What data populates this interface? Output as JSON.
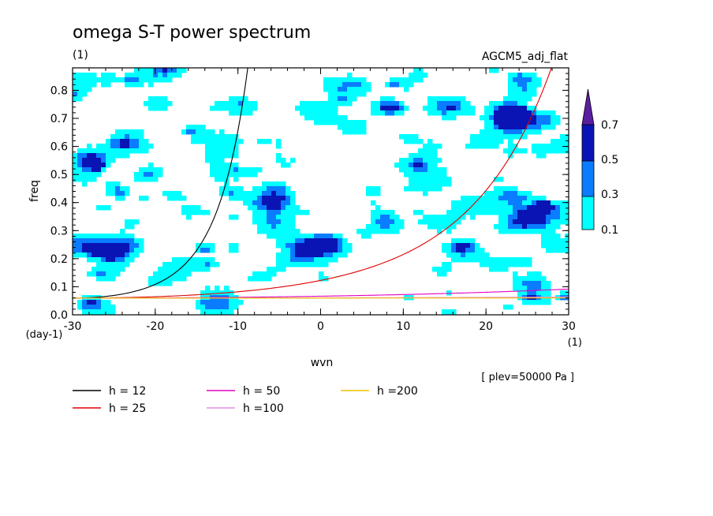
{
  "chart_data": {
    "type": "heatmap",
    "title": "omega S-T power spectrum",
    "title_units": "(1)",
    "experiment": "AGCM5_adj_flat",
    "xlabel": "wvn",
    "x_units": "(1)",
    "ylabel": "freq",
    "y_units": "(day-1)",
    "xlim": [
      -30,
      30
    ],
    "ylim": [
      0,
      0.88
    ],
    "x_ticks": [
      "-30",
      "-20",
      "-10",
      "0",
      "10",
      "20",
      "30"
    ],
    "y_ticks": [
      "0.0",
      "0.1",
      "0.2",
      "0.3",
      "0.4",
      "0.5",
      "0.6",
      "0.7",
      "0.8"
    ],
    "plev_note": "[ plev=50000 Pa ]",
    "colorbar": {
      "levels": [
        "0.1",
        "0.3",
        "0.5",
        "0.7"
      ],
      "colors": [
        "#00ffff",
        "#0a7cff",
        "#0a14b4",
        "#5a1ea0"
      ]
    },
    "series": [
      {
        "name": "h = 12",
        "h": 12,
        "color": "#000000"
      },
      {
        "name": "h = 25",
        "h": 25,
        "color": "#e00000"
      },
      {
        "name": "h = 50",
        "h": 50,
        "color": "#e000c0"
      },
      {
        "name": "h =100",
        "h": 100,
        "color": "#e090e0"
      },
      {
        "name": "h =200",
        "h": 200,
        "color": "#f0c000"
      }
    ]
  }
}
